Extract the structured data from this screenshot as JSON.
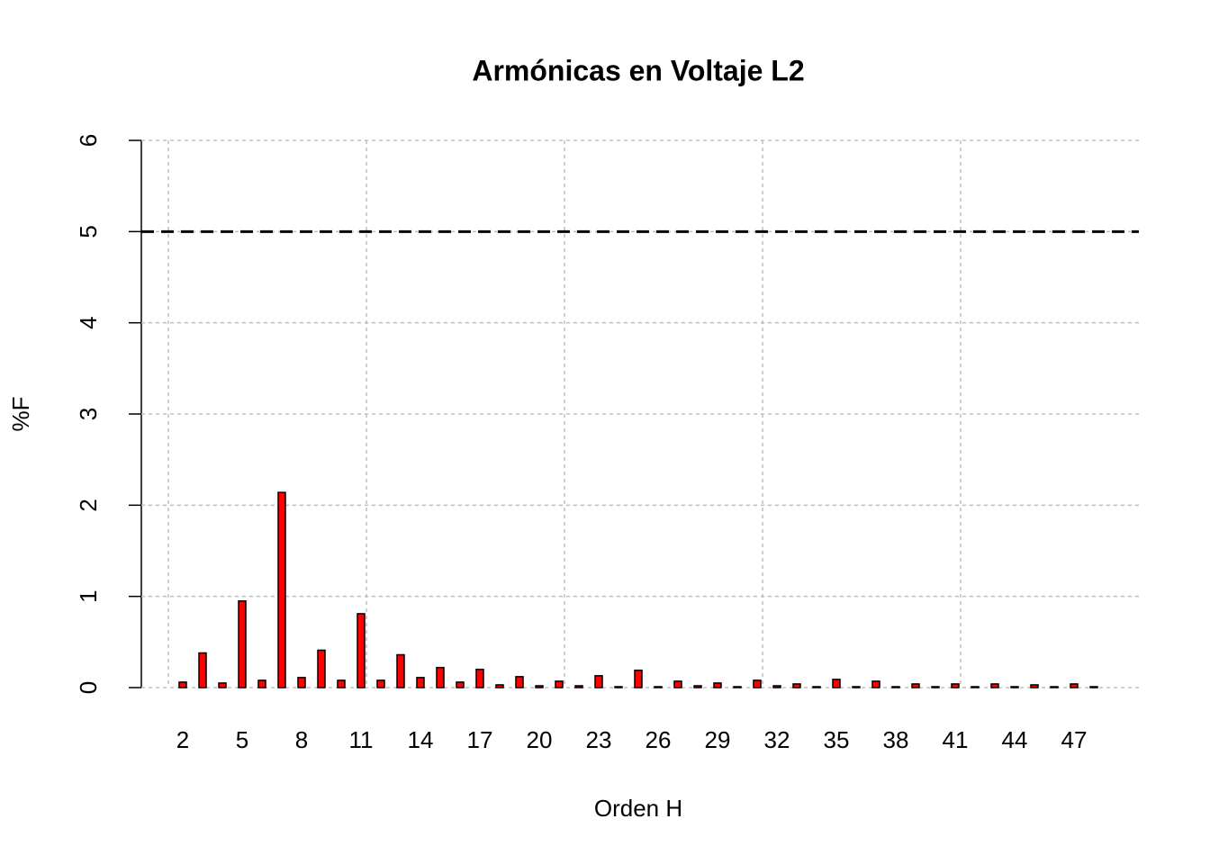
{
  "chart_data": {
    "type": "bar",
    "title": "Armónicas en Voltaje L2",
    "xlabel": "Orden H",
    "ylabel": "%F",
    "categories": [
      "2",
      null,
      null,
      "5",
      null,
      null,
      "8",
      null,
      null,
      "11",
      null,
      null,
      "14",
      null,
      null,
      "17",
      null,
      null,
      "20",
      null,
      null,
      "23",
      null,
      null,
      "26",
      null,
      null,
      "29",
      null,
      null,
      "32",
      null,
      null,
      "35",
      null,
      null,
      "38",
      null,
      null,
      "41",
      null,
      null,
      "44",
      null,
      null,
      "47",
      null
    ],
    "values": [
      0.06,
      0.38,
      0.05,
      0.95,
      0.08,
      2.14,
      0.11,
      0.41,
      0.08,
      0.81,
      0.08,
      0.36,
      0.11,
      0.22,
      0.06,
      0.2,
      0.03,
      0.12,
      0.02,
      0.07,
      0.02,
      0.13,
      0.01,
      0.19,
      0.01,
      0.07,
      0.02,
      0.05,
      0.01,
      0.08,
      0.02,
      0.04,
      0.01,
      0.09,
      0.01,
      0.07,
      0.01,
      0.04,
      0.01,
      0.04,
      0.01,
      0.04,
      0.01,
      0.03,
      0.01,
      0.04,
      0.01
    ],
    "color": "#ff0000",
    "ylim": [
      0,
      6
    ],
    "yticks": [
      0,
      1,
      2,
      3,
      4,
      5,
      6
    ],
    "grid": true,
    "hline": 5
  }
}
